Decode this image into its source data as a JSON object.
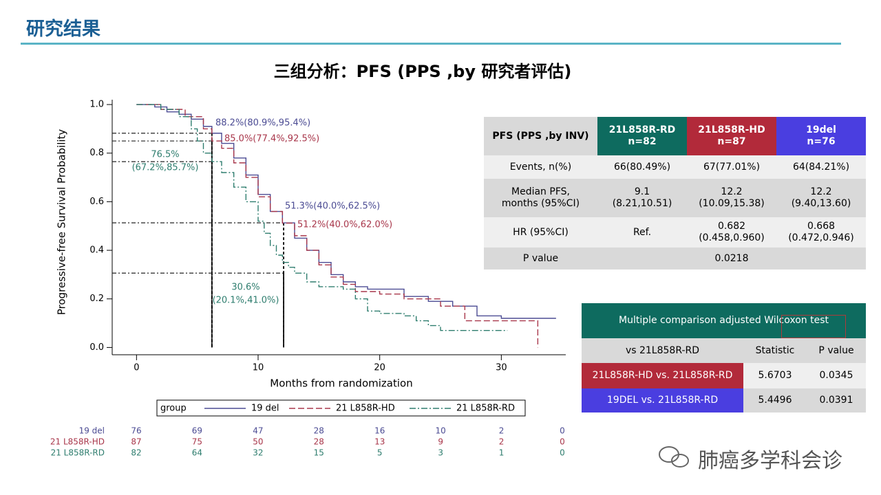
{
  "header": {
    "title": "研究结果",
    "subtitle": "三组分析：PFS (PPS ,by 研究者评估)"
  },
  "chart_data": {
    "type": "step",
    "xlabel": "Months from randomization",
    "ylabel": "Progressive-free Survival Probability",
    "xlim": [
      -2,
      35.3
    ],
    "xticks": [
      0,
      10,
      20,
      30
    ],
    "ylim": [
      -0.03,
      1.02
    ],
    "yticks": [
      {
        "value": 0,
        "label": "0.0"
      },
      0.2,
      0.4,
      0.6,
      0.8,
      {
        "value": 1,
        "label": "1.0"
      }
    ],
    "series": [
      {
        "name": "19 del",
        "color": "#4b4b93",
        "dash": "solid",
        "x": [
          0,
          1.5,
          2.5,
          3.5,
          4.5,
          5.5,
          6.2,
          7,
          8,
          9,
          10,
          11,
          12,
          13,
          14,
          15,
          16,
          17,
          18,
          19,
          22,
          24,
          26,
          28,
          30,
          34.5
        ],
        "values": [
          1.0,
          0.99,
          0.97,
          0.96,
          0.94,
          0.91,
          0.882,
          0.84,
          0.78,
          0.71,
          0.63,
          0.56,
          0.513,
          0.45,
          0.4,
          0.35,
          0.3,
          0.27,
          0.25,
          0.24,
          0.21,
          0.19,
          0.17,
          0.13,
          0.12,
          0.12
        ]
      },
      {
        "name": "21 L858R-HD",
        "color": "#a8364a",
        "dash": "dashed",
        "x": [
          0,
          2,
          4,
          5.5,
          6.2,
          7,
          8,
          9,
          10,
          11,
          12,
          13,
          14,
          15,
          16,
          17,
          18,
          20,
          22,
          25,
          27,
          32.9,
          33
        ],
        "values": [
          1.0,
          0.98,
          0.95,
          0.9,
          0.85,
          0.82,
          0.76,
          0.7,
          0.62,
          0.56,
          0.512,
          0.46,
          0.4,
          0.34,
          0.29,
          0.26,
          0.23,
          0.22,
          0.2,
          0.17,
          0.11,
          0.11,
          0.0
        ]
      },
      {
        "name": "21 L858R-RD",
        "color": "#2e7d6e",
        "dash": "dashdot",
        "x": [
          0,
          2,
          3.5,
          4.5,
          5,
          5.5,
          6.2,
          7,
          8,
          9,
          10,
          10.5,
          11,
          11.5,
          12,
          12.5,
          13,
          14,
          15,
          17,
          18,
          19,
          20,
          22,
          23,
          24,
          25,
          30.5
        ],
        "values": [
          1.0,
          0.98,
          0.95,
          0.9,
          0.85,
          0.8,
          0.765,
          0.72,
          0.66,
          0.6,
          0.52,
          0.47,
          0.42,
          0.38,
          0.35,
          0.33,
          0.306,
          0.27,
          0.25,
          0.24,
          0.2,
          0.15,
          0.14,
          0.13,
          0.11,
          0.09,
          0.07,
          0.07
        ]
      }
    ],
    "guides": [
      {
        "x": 6.2,
        "y": 0.882
      },
      {
        "x": 6.2,
        "y": 0.85
      },
      {
        "x": 6.2,
        "y": 0.765
      },
      {
        "x": 12.1,
        "y": 0.513
      },
      {
        "x": 12.1,
        "y": 0.306
      }
    ],
    "annotations": [
      "88.2%(80.9%,95.4%)",
      "85.0%(77.4%,92.5%)",
      "76.5%",
      "(67.2%,85.7%)",
      "51.3%(40.0%,62.5%)",
      "51.2%(40.0%,62.0%)",
      "30.6%",
      "(20.1%,41.0%)"
    ],
    "legend_title": "group",
    "risk_table": [
      [
        76,
        69,
        47,
        28,
        16,
        10,
        2,
        0
      ],
      [
        87,
        75,
        50,
        28,
        13,
        9,
        2,
        0
      ],
      [
        82,
        64,
        32,
        15,
        5,
        3,
        1,
        0
      ]
    ]
  },
  "pfs_table": {
    "header": [
      "PFS (PPS ,by INV)",
      "21L858R-RD\nn=82",
      "21L858R-HD\nn=87",
      "19del\nn=76"
    ],
    "rows": [
      [
        "Events, n(%)",
        "66(80.49%)",
        "67(77.01%)",
        "64(84.21%)"
      ],
      [
        "Median PFS,\nmonths (95%CI)",
        "9.1\n(8.21,10.51)",
        "12.2\n(10.09,15.38)",
        "12.2\n(9.40,13.60)"
      ],
      [
        "HR (95%CI)",
        "Ref.",
        "0.682\n(0.458,0.960)",
        "0.668\n(0.472,0.946)"
      ]
    ],
    "p_row": [
      "P value",
      "0.0218"
    ]
  },
  "wilcoxon_table": {
    "title": "Multiple comparison adjusted Wilcoxon test",
    "header": [
      "vs 21L858R-RD",
      "Statistic",
      "P value"
    ],
    "rows": [
      [
        "21L858R-HD vs. 21L858R-RD",
        "5.6703",
        "0.0345"
      ],
      [
        "19DEL vs. 21L858R-RD",
        "5.4496",
        "0.0391"
      ]
    ]
  },
  "watermark": "肺癌多学科会诊"
}
